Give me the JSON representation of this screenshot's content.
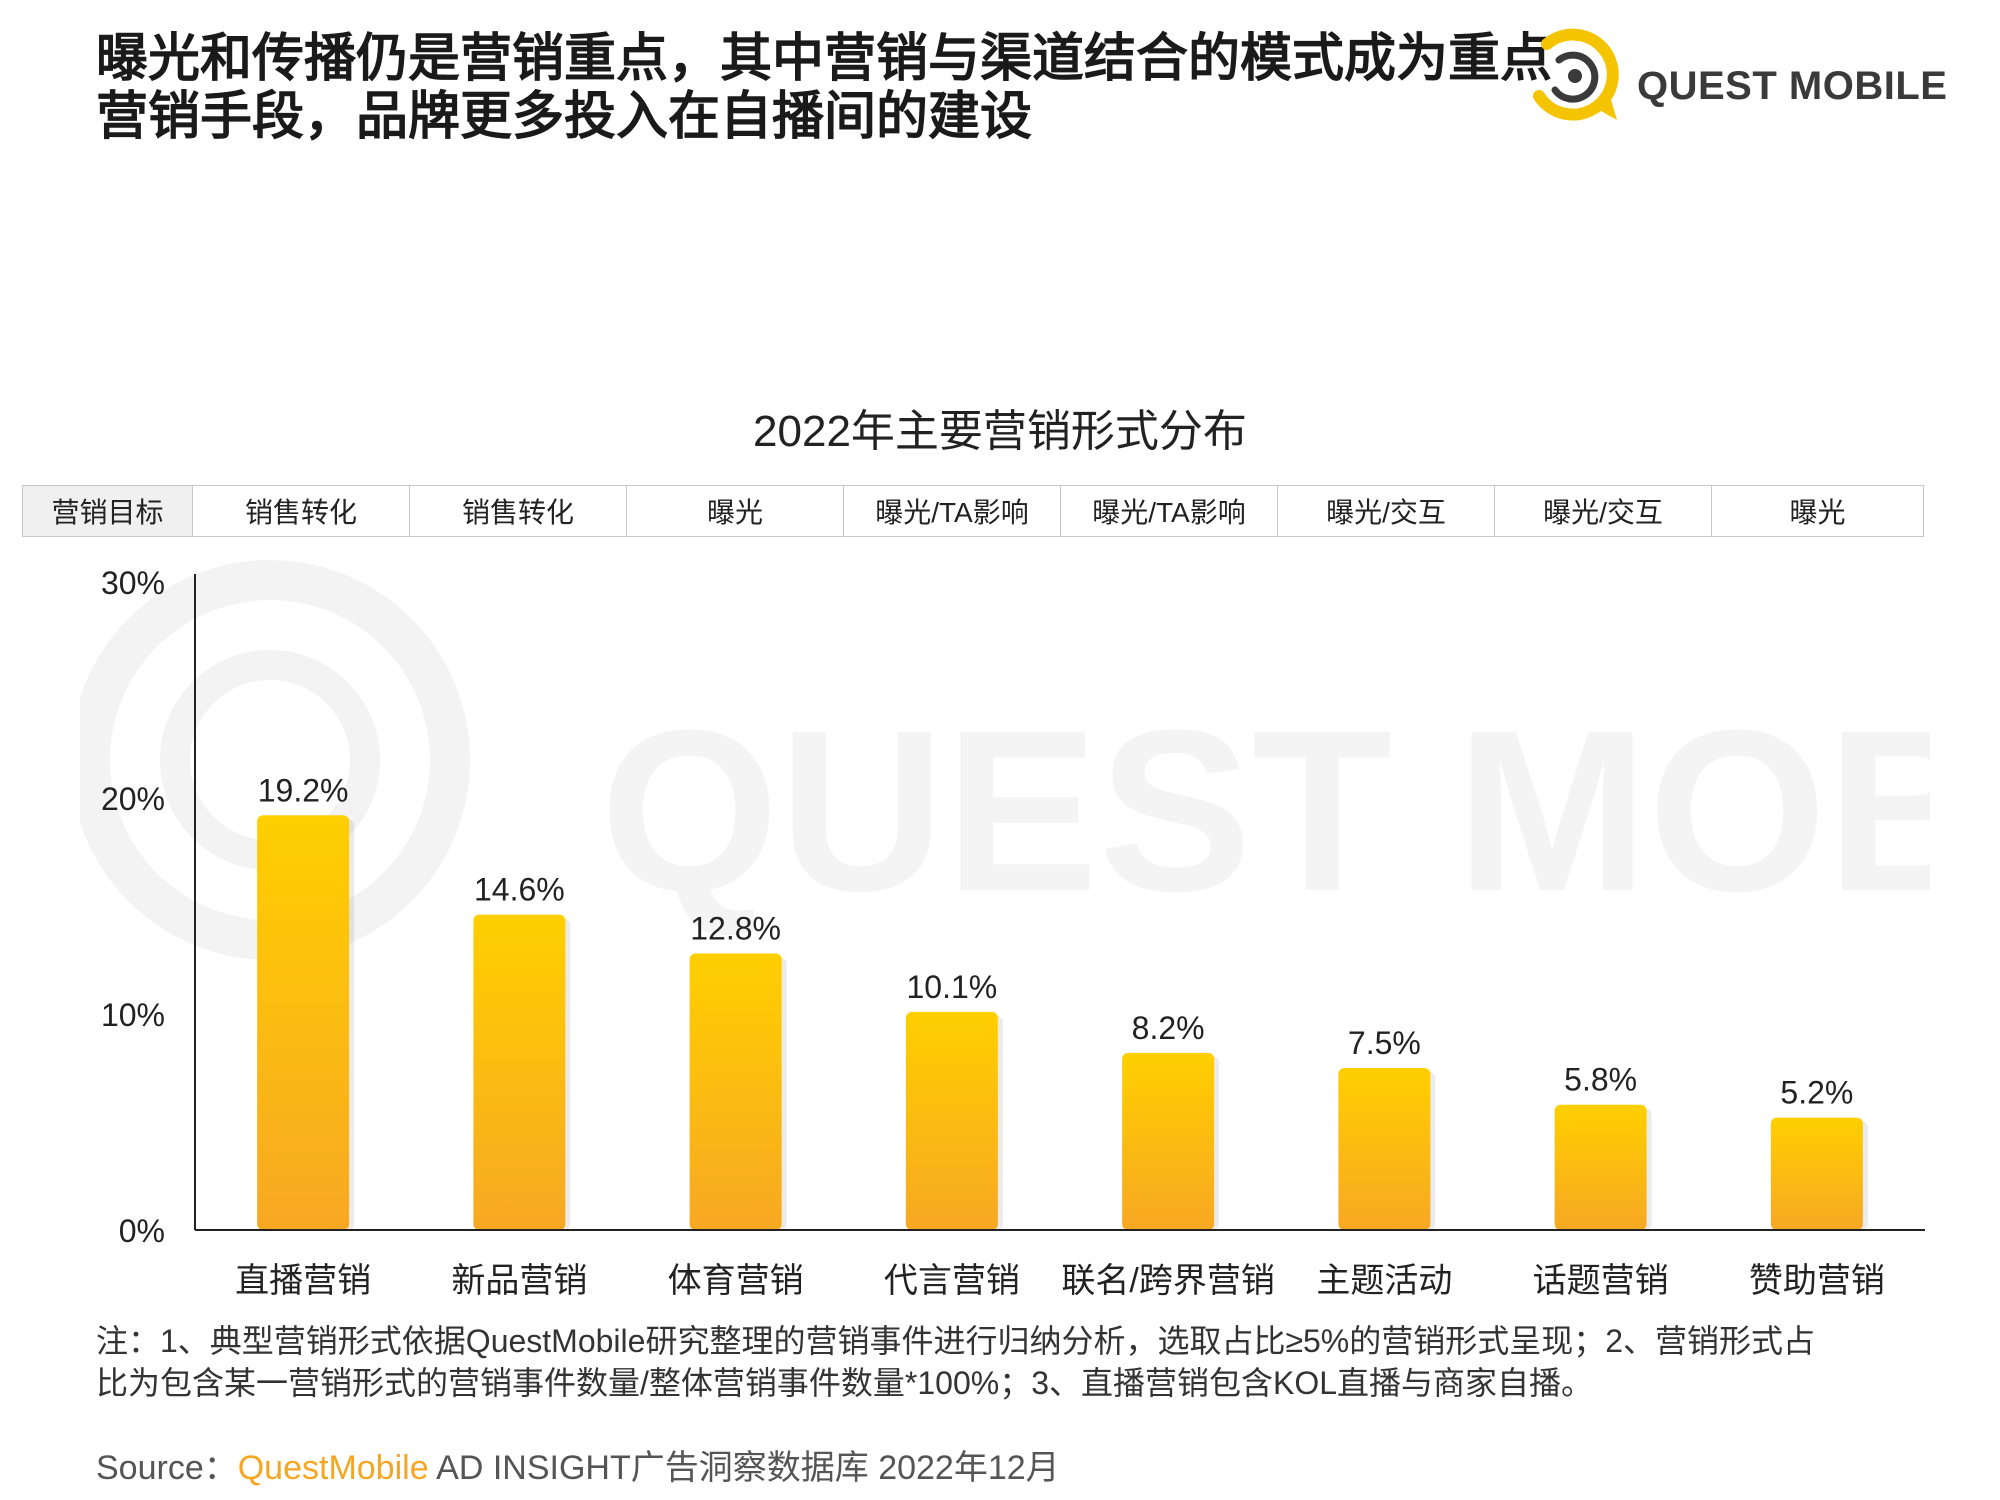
{
  "headline": {
    "line1": "曝光和传播仍是营销重点，其中营销与渠道结合的模式成为重点",
    "line2": "营销手段，品牌更多投入在自播间的建设"
  },
  "logo": {
    "text": "QUEST MOBILE",
    "icon": "quest-mobile-logo-icon",
    "color": "#f5c400"
  },
  "watermark": {
    "text": "QUEST MOBILE"
  },
  "objectives": {
    "header": "营销目标",
    "items": [
      "销售转化",
      "销售转化",
      "曝光",
      "曝光/TA影响",
      "曝光/TA影响",
      "曝光/交互",
      "曝光/交互",
      "曝光"
    ]
  },
  "chart_data": {
    "type": "bar",
    "title": "2022年主要营销形式分布",
    "categories": [
      "直播营销",
      "新品营销",
      "体育营销",
      "代言营销",
      "联名/跨界营销",
      "主题活动",
      "话题营销",
      "赞助营销"
    ],
    "values": [
      19.2,
      14.6,
      12.8,
      10.1,
      8.2,
      7.5,
      5.8,
      5.2
    ],
    "value_labels": [
      "19.2%",
      "14.6%",
      "12.8%",
      "10.1%",
      "8.2%",
      "7.5%",
      "5.8%",
      "5.2%"
    ],
    "y_ticks": [
      0,
      10,
      20,
      30
    ],
    "y_tick_labels": [
      "0%",
      "10%",
      "20%",
      "30%"
    ],
    "ylim": [
      0,
      30
    ],
    "xlabel": "",
    "ylabel": "",
    "grid": false,
    "bar_color_top": "#ffcf00",
    "bar_color_bottom": "#f7a823"
  },
  "note": {
    "line1": "注：1、典型营销形式依据QuestMobile研究整理的营销事件进行归纳分析，选取占比≥5%的营销形式呈现；2、营销形式占",
    "line2": "比为包含某一营销形式的营销事件数量/整体营销事件数量*100%；3、直播营销包含KOL直播与商家自播。"
  },
  "source": {
    "label": "Source：",
    "brand": "QuestMobile",
    "rest": " AD INSIGHT广告洞察数据库 2022年12月"
  }
}
